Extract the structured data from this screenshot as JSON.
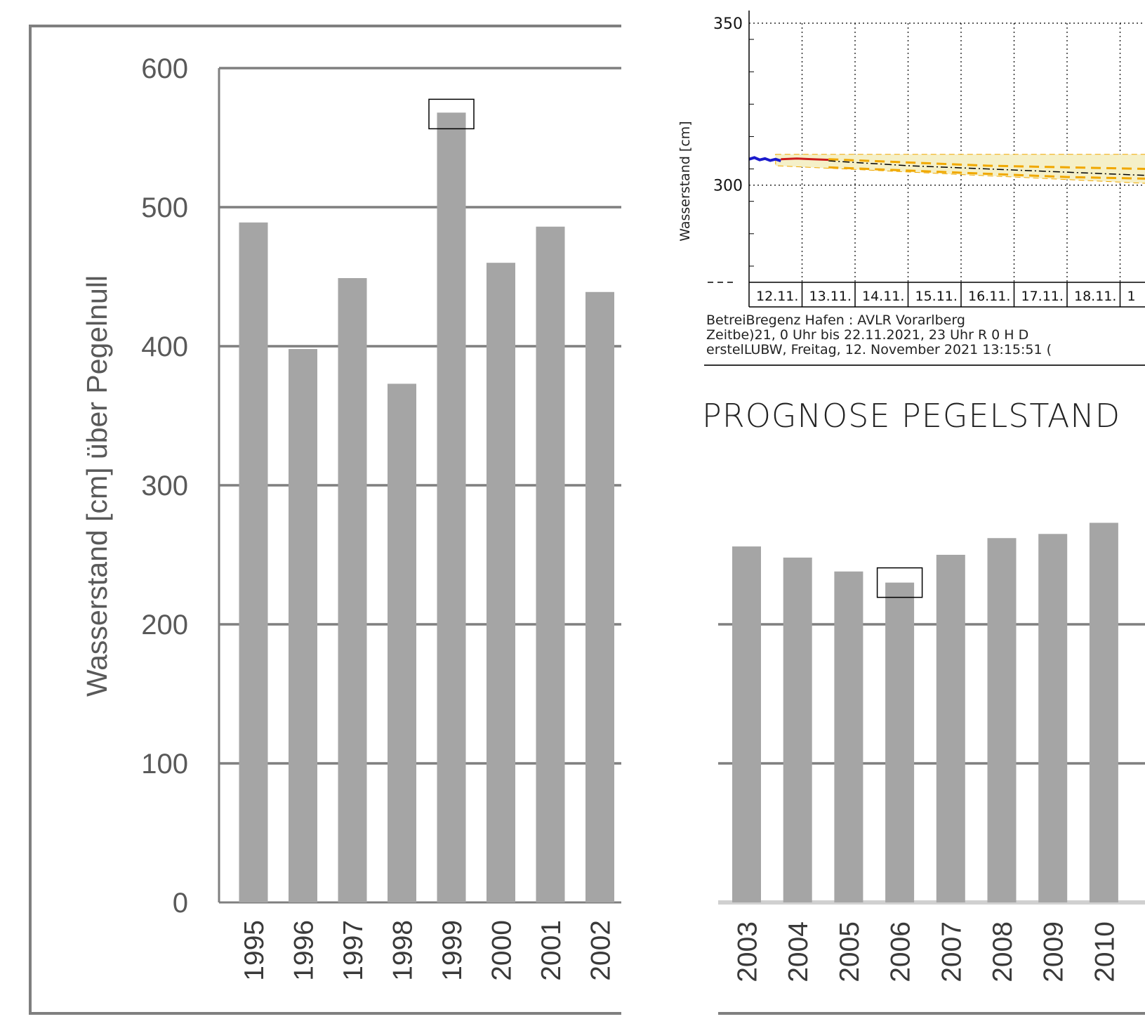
{
  "prognose_heading": "PROGNOSE PEGELSTAND",
  "chart_data": [
    {
      "type": "bar",
      "ylabel": "Wasserstand [cm] über Pegelnull",
      "ylim": [
        0,
        600
      ],
      "yticks": [
        0,
        100,
        200,
        300,
        400,
        500,
        600
      ],
      "grid": true,
      "categories": [
        "1995",
        "1996",
        "1997",
        "1998",
        "1999",
        "2000",
        "2001",
        "2002"
      ],
      "values": [
        489,
        398,
        449,
        373,
        568,
        460,
        486,
        439
      ],
      "highlighted_category": "1999",
      "bar_color": "#a5a5a5"
    },
    {
      "type": "line",
      "ylabel": "Wasserstand [cm]",
      "ylim": [
        270,
        350
      ],
      "yticks": [
        300,
        350
      ],
      "grid": true,
      "x_ticks": [
        "12.11.",
        "13.11.",
        "14.11.",
        "15.11.",
        "16.11.",
        "17.11.",
        "18.11.",
        "1"
      ],
      "series": [
        {
          "color": "#1a1acc",
          "x": [
            0,
            0.1,
            0.2,
            0.3,
            0.4,
            0.5,
            0.6
          ],
          "y": [
            308,
            308.5,
            307.8,
            308.2,
            307.6,
            308,
            307.5
          ]
        },
        {
          "color": "#cc1a1a",
          "x": [
            0.6,
            0.9,
            1.2,
            1.5
          ],
          "y": [
            308,
            308.2,
            308,
            307.8
          ]
        },
        {
          "color": "#000000",
          "x": [
            1.5,
            3,
            4.5,
            6,
            7.5,
            8.2
          ],
          "y": [
            307.5,
            306,
            305,
            304,
            303,
            302.5
          ]
        },
        {
          "color": "#f0a800",
          "x": [
            1.5,
            3,
            4.5,
            6,
            7.5,
            8.2
          ],
          "y": [
            308,
            307,
            306,
            305.5,
            305,
            305
          ]
        },
        {
          "color": "#f0a800",
          "x": [
            1.5,
            3,
            4.5,
            6,
            7.5,
            8.2
          ],
          "y": [
            305.5,
            304.5,
            303.5,
            302.5,
            302,
            301.5
          ]
        }
      ],
      "band": {
        "color": "#f5f0c8",
        "x": [
          0.5,
          8.2
        ],
        "upper": [
          309.5,
          309.5
        ],
        "lower": [
          306,
          300
        ]
      },
      "footer_lines": [
        "BetreiBregenz Hafen : AVLR Vorarlberg",
        "Zeitbe)21, 0 Uhr bis 22.11.2021, 23 Uhr    R 0 H D",
        "erstelLUBW, Freitag, 12. November 2021 13:15:51 ("
      ]
    },
    {
      "type": "bar",
      "ylim": [
        0,
        600
      ],
      "grid": true,
      "categories": [
        "2003",
        "2004",
        "2005",
        "2006",
        "2007",
        "2008",
        "2009",
        "2010"
      ],
      "values": [
        256,
        248,
        238,
        230,
        250,
        262,
        265,
        273
      ],
      "highlighted_category": "2006",
      "bar_color": "#a5a5a5"
    }
  ]
}
